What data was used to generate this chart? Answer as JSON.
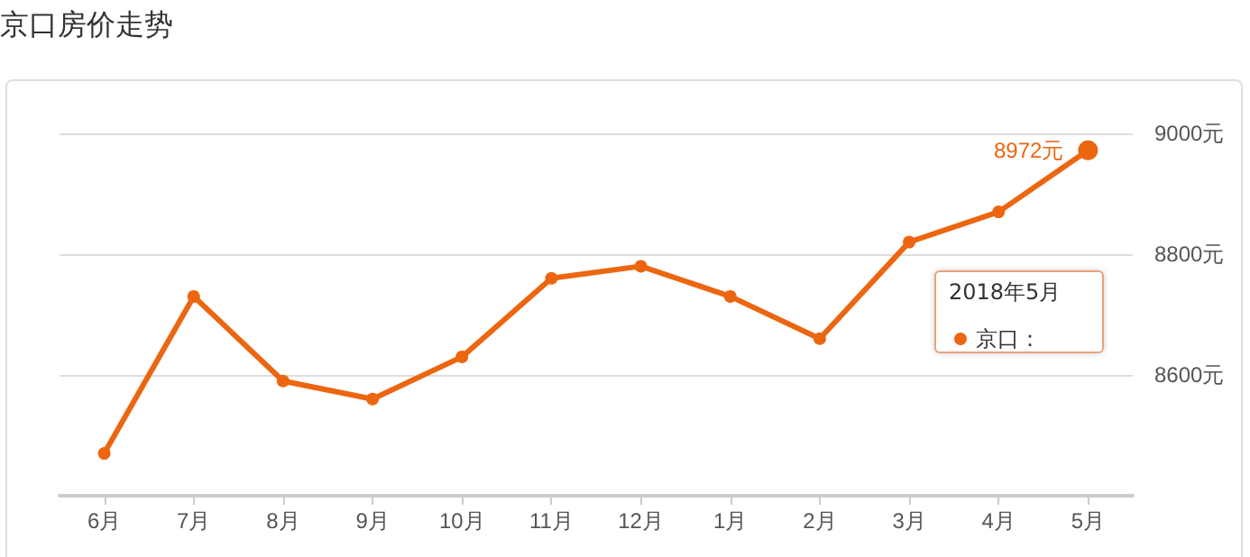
{
  "chart_data": {
    "type": "line",
    "title": "京口房价走势",
    "categories": [
      "6月",
      "7月",
      "8月",
      "9月",
      "10月",
      "11月",
      "12月",
      "1月",
      "2月",
      "3月",
      "4月",
      "5月"
    ],
    "series": [
      {
        "name": "京口：",
        "color": "#ec6611",
        "values": [
          8470,
          8730,
          8590,
          8560,
          8630,
          8760,
          8780,
          8730,
          8660,
          8820,
          8870,
          8972
        ],
        "value_labels": [
          null,
          null,
          null,
          null,
          null,
          null,
          null,
          null,
          null,
          null,
          null,
          "8972元"
        ]
      }
    ],
    "annotations": [
      "2018年5月"
    ],
    "ylim": [
      8400,
      9000
    ],
    "yticks": [
      {
        "value": 8400,
        "label": null
      },
      {
        "value": 8600,
        "label": "8600元"
      },
      {
        "value": 8800,
        "label": "8800元"
      },
      {
        "value": 9000,
        "label": "9000元"
      }
    ],
    "grid": "y",
    "marker": "circle",
    "legend": "right"
  }
}
